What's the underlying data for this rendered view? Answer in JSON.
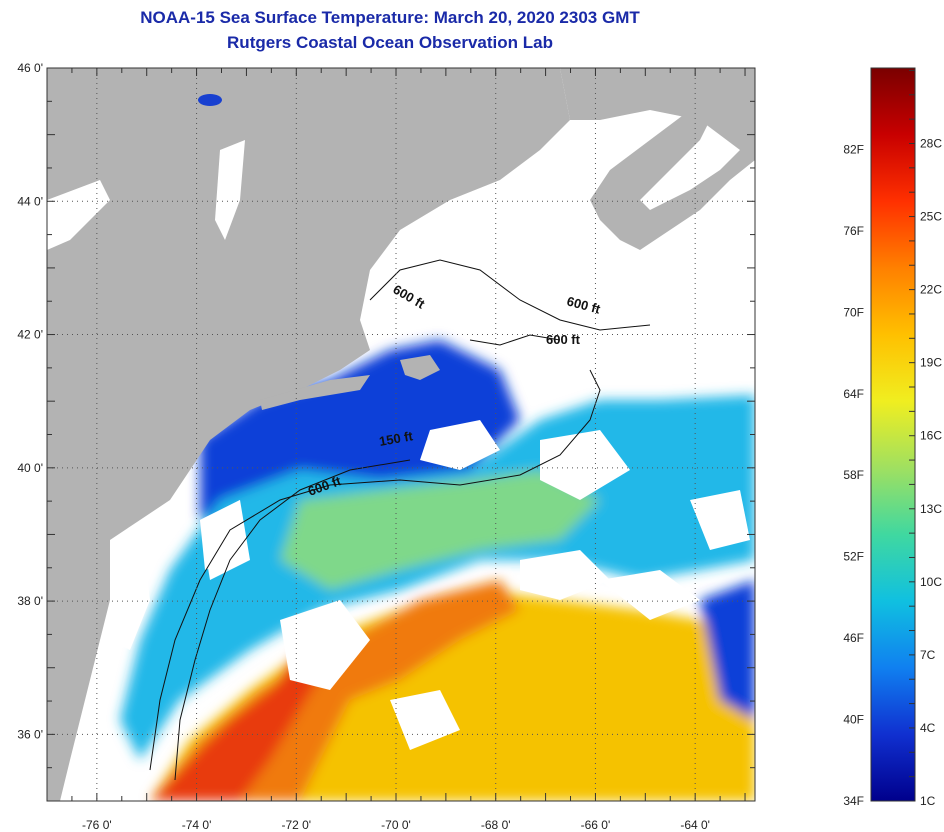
{
  "header": {
    "title_line1": "NOAA-15 Sea Surface Temperature:  March 20, 2020 2303 GMT",
    "title_line2": "Rutgers Coastal Ocean Observation Lab"
  },
  "map": {
    "lat_ticks": [
      "46 0'",
      "44 0'",
      "42 0'",
      "40 0'",
      "38 0'",
      "36 0'"
    ],
    "lon_ticks": [
      "-76 0'",
      "-74 0'",
      "-72 0'",
      "-70 0'",
      "-68 0'",
      "-66 0'",
      "-64 0'"
    ],
    "contour_labels": [
      "600 ft",
      "600 ft",
      "600 ft",
      "150 ft",
      "600 ft"
    ],
    "colors": {
      "land": "#b3b3b3",
      "cloud": "#ffffff",
      "cold": "#1040d8",
      "cool": "#22b8e8",
      "mid": "#7fd88a",
      "warm": "#f5c200",
      "hot": "#f07a10",
      "hottest": "#e83a10"
    }
  },
  "colorbar": {
    "fahrenheit_labels": [
      "82F",
      "76F",
      "70F",
      "64F",
      "58F",
      "52F",
      "46F",
      "40F",
      "34F"
    ],
    "celsius_labels": [
      "28C",
      "25C",
      "22C",
      "19C",
      "16C",
      "13C",
      "10C",
      "7C",
      "4C",
      "1C"
    ],
    "gradient": [
      "#7a0000",
      "#c80000",
      "#ff3000",
      "#ff8000",
      "#ffc000",
      "#f0ee20",
      "#a0e060",
      "#40d8a0",
      "#10c0e0",
      "#1080f0",
      "#1030d0",
      "#00008c"
    ]
  }
}
